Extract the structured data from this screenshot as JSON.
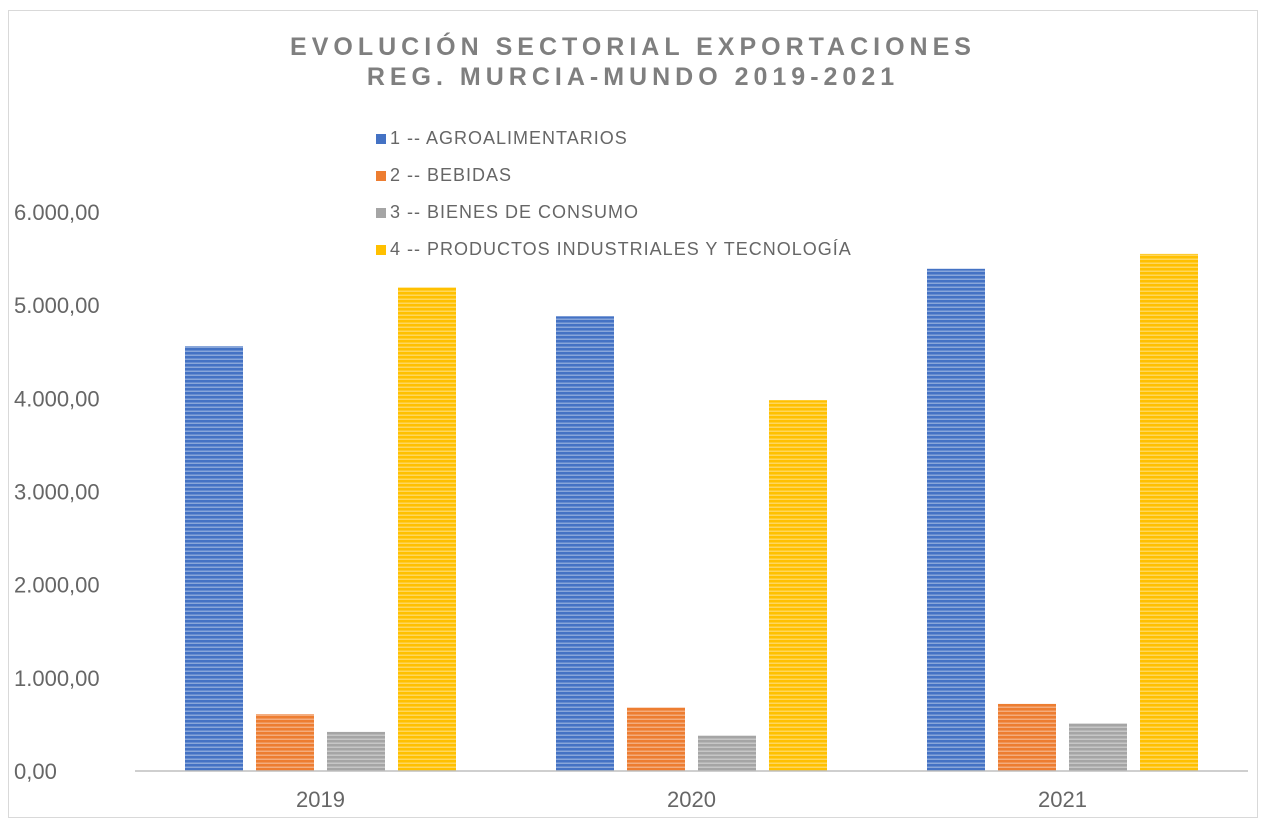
{
  "chart_data": {
    "type": "bar",
    "title": "EVOLUCIÓN SECTORIAL EXPORTACIONES REG. MURCIA-MUNDO 2019-2021",
    "title_lines": [
      "EVOLUCIÓN SECTORIAL EXPORTACIONES",
      "REG. MURCIA-MUNDO 2019-2021"
    ],
    "xlabel": "",
    "ylabel": "",
    "categories": [
      "2019",
      "2020",
      "2021"
    ],
    "series": [
      {
        "name": "1 -- AGROALIMENTARIOS",
        "color": "#4472c4",
        "values": [
          4560,
          4880,
          5390
        ]
      },
      {
        "name": "2 -- BEBIDAS",
        "color": "#ed7d31",
        "values": [
          610,
          680,
          720
        ]
      },
      {
        "name": "3 -- BIENES DE CONSUMO",
        "color": "#a5a5a5",
        "values": [
          420,
          380,
          510
        ]
      },
      {
        "name": "4 -- PRODUCTOS INDUSTRIALES Y TECNOLOGÍA",
        "color": "#ffc000",
        "values": [
          5190,
          3980,
          5550
        ]
      }
    ],
    "ylim": [
      0,
      6000
    ],
    "yticks": [
      0,
      1000,
      2000,
      3000,
      4000,
      5000,
      6000
    ],
    "ytick_labels": [
      "0,00",
      "1.000,00",
      "2.000,00",
      "3.000,00",
      "4.000,00",
      "5.000,00",
      "6.000,00"
    ],
    "grid": false,
    "legend_position": "top-center",
    "bar_pattern": "horizontal-stripes"
  }
}
